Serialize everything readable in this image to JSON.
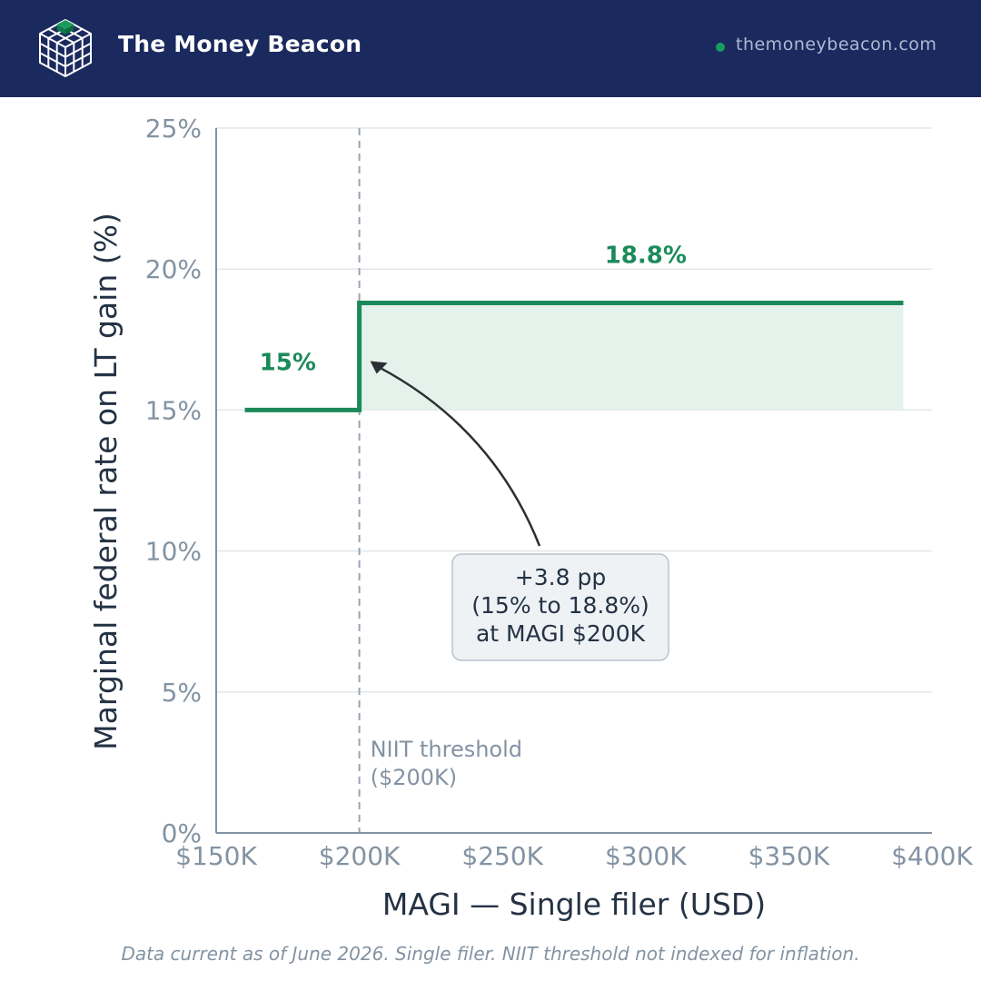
{
  "header": {
    "brand": "The Money Beacon",
    "site": "themoneybeacon.com",
    "colors": {
      "bar": "#1b2a5e",
      "accent": "#1a9b5e"
    },
    "icon": "cube-grid-logo-icon"
  },
  "chart_data": {
    "type": "line",
    "title": "",
    "xlabel": "MAGI — Single filer (USD)",
    "ylabel": "Marginal federal rate on LT gain (%)",
    "xlim": [
      150000,
      400000
    ],
    "ylim": [
      0,
      25
    ],
    "x_ticks": [
      {
        "value": 150000,
        "label": "$150K"
      },
      {
        "value": 200000,
        "label": "$200K"
      },
      {
        "value": 250000,
        "label": "$250K"
      },
      {
        "value": 300000,
        "label": "$300K"
      },
      {
        "value": 350000,
        "label": "$350K"
      },
      {
        "value": 400000,
        "label": "$400K"
      }
    ],
    "y_ticks": [
      {
        "value": 0,
        "label": "0%"
      },
      {
        "value": 5,
        "label": "5%"
      },
      {
        "value": 10,
        "label": "10%"
      },
      {
        "value": 15,
        "label": "15%"
      },
      {
        "value": 20,
        "label": "20%"
      },
      {
        "value": 25,
        "label": "25%"
      }
    ],
    "grid": true,
    "series": [
      {
        "color": "#1b8a5a",
        "step": true,
        "points": [
          {
            "x": 160000,
            "y": 15
          },
          {
            "x": 200000,
            "y": 15
          },
          {
            "x": 200000,
            "y": 18.8
          },
          {
            "x": 390000,
            "y": 18.8
          }
        ]
      }
    ],
    "shaded_region": {
      "x": [
        200000,
        390000
      ],
      "y": [
        15,
        18.8
      ],
      "color": "#e4f2eb"
    },
    "data_labels": [
      {
        "text": "15%",
        "x": 175000,
        "y": 15
      },
      {
        "text": "18.8%",
        "x": 300000,
        "y": 18.8
      }
    ],
    "reference_line": {
      "x": 200000,
      "label_line1": "NIIT threshold",
      "label_line2": "($200K)"
    },
    "callout": {
      "lines": [
        "+3.8 pp",
        "(15% to 18.8%)",
        "at MAGI $200K"
      ],
      "points_to": {
        "x": 200000,
        "y": 18.8
      }
    }
  },
  "footer": "Data current as of June 2026. Single filer. NIIT threshold not indexed for inflation."
}
